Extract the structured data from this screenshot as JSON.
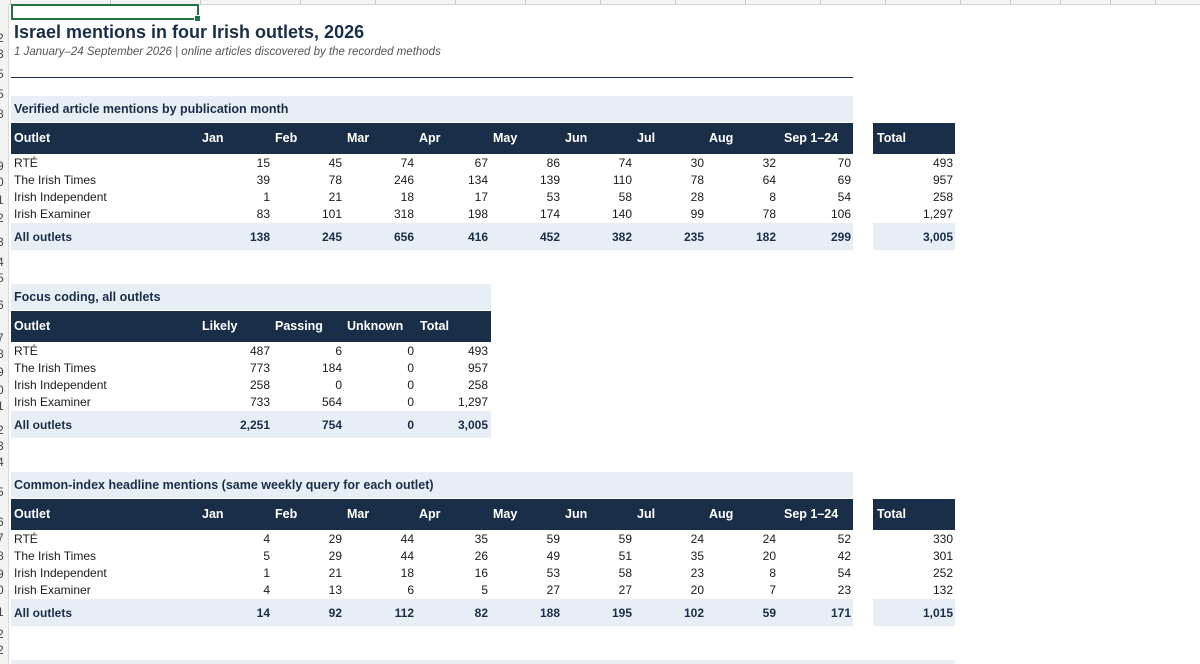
{
  "title": "Israel mentions in four Irish outlets, 2026",
  "subtitle": "1 January–24 September 2026 | online articles discovered by the recorded methods",
  "row_numbers": [
    "2",
    "3",
    "5",
    "5",
    "8",
    "9",
    "0",
    "1",
    "2",
    "3",
    "4",
    "5",
    "6",
    "7",
    "8",
    "9",
    "0",
    "1",
    "2",
    "3",
    "4",
    "5",
    "6",
    "7",
    "8",
    "9",
    "0",
    "1",
    "2"
  ],
  "monthly": {
    "title": "Verified article mentions by publication month",
    "headers": [
      "Outlet",
      "Jan",
      "Feb",
      "Mar",
      "Apr",
      "May",
      "Jun",
      "Jul",
      "Aug",
      "Sep 1–24"
    ],
    "total_header": "Total",
    "rows": [
      {
        "outlet": "RTÉ",
        "values": [
          "15",
          "45",
          "74",
          "67",
          "86",
          "74",
          "30",
          "32",
          "70"
        ],
        "total": "493"
      },
      {
        "outlet": "The Irish Times",
        "values": [
          "39",
          "78",
          "246",
          "134",
          "139",
          "110",
          "78",
          "64",
          "69"
        ],
        "total": "957"
      },
      {
        "outlet": "Irish Independent",
        "values": [
          "1",
          "21",
          "18",
          "17",
          "53",
          "58",
          "28",
          "8",
          "54"
        ],
        "total": "258"
      },
      {
        "outlet": "Irish Examiner",
        "values": [
          "83",
          "101",
          "318",
          "198",
          "174",
          "140",
          "99",
          "78",
          "106"
        ],
        "total": "1,297"
      }
    ],
    "all": {
      "outlet": "All outlets",
      "values": [
        "138",
        "245",
        "656",
        "416",
        "452",
        "382",
        "235",
        "182",
        "299"
      ],
      "total": "3,005"
    }
  },
  "focus": {
    "title": "Focus coding, all outlets",
    "headers": [
      "Outlet",
      "Likely",
      "Passing",
      "Unknown",
      "Total"
    ],
    "rows": [
      {
        "outlet": "RTÉ",
        "values": [
          "487",
          "6",
          "0",
          "493"
        ]
      },
      {
        "outlet": "The Irish Times",
        "values": [
          "773",
          "184",
          "0",
          "957"
        ]
      },
      {
        "outlet": "Irish Independent",
        "values": [
          "258",
          "0",
          "0",
          "258"
        ]
      },
      {
        "outlet": "Irish Examiner",
        "values": [
          "733",
          "564",
          "0",
          "1,297"
        ]
      }
    ],
    "all": {
      "outlet": "All outlets",
      "values": [
        "2,251",
        "754",
        "0",
        "3,005"
      ]
    }
  },
  "headline": {
    "title": "Common-index headline mentions (same weekly query for each outlet)",
    "headers": [
      "Outlet",
      "Jan",
      "Feb",
      "Mar",
      "Apr",
      "May",
      "Jun",
      "Jul",
      "Aug",
      "Sep 1–24"
    ],
    "total_header": "Total",
    "rows": [
      {
        "outlet": "RTÉ",
        "values": [
          "4",
          "29",
          "44",
          "35",
          "59",
          "59",
          "24",
          "24",
          "52"
        ],
        "total": "330"
      },
      {
        "outlet": "The Irish Times",
        "values": [
          "5",
          "29",
          "44",
          "26",
          "49",
          "51",
          "35",
          "20",
          "42"
        ],
        "total": "301"
      },
      {
        "outlet": "Irish Independent",
        "values": [
          "1",
          "21",
          "18",
          "16",
          "53",
          "58",
          "23",
          "8",
          "54"
        ],
        "total": "252"
      },
      {
        "outlet": "Irish Examiner",
        "values": [
          "4",
          "13",
          "6",
          "5",
          "27",
          "27",
          "20",
          "7",
          "23"
        ],
        "total": "132"
      }
    ],
    "all": {
      "outlet": "All outlets",
      "values": [
        "14",
        "92",
        "112",
        "82",
        "188",
        "195",
        "102",
        "59",
        "171"
      ],
      "total": "1,015"
    }
  }
}
